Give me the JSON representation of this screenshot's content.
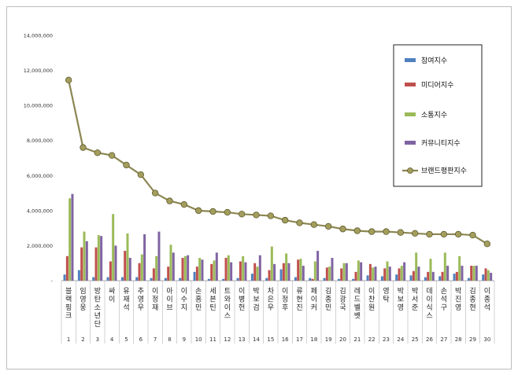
{
  "chart_data": {
    "type": "bar",
    "title": "",
    "xlabel": "",
    "ylabel": "",
    "ylim": [
      0,
      14000000
    ],
    "yticks": [
      "-",
      "2,000,000",
      "4,000,000",
      "6,000,000",
      "8,000,000",
      "10,000,000",
      "12,000,000",
      "14,000,000"
    ],
    "grid": false,
    "legend_position": "top-right",
    "categories": [
      "블랙핑크",
      "임영웅",
      "방탄소년단",
      "싸이",
      "유재석",
      "추영우",
      "이정재",
      "아이브",
      "이수지",
      "손흥민",
      "세븐틴",
      "트와이스",
      "이병헌",
      "박보검",
      "차은우",
      "이정후",
      "류현진",
      "페이커",
      "김종민",
      "김광국",
      "레드벨벳",
      "이찬원",
      "영탁",
      "박보영",
      "박서준",
      "데이식스",
      "손석구",
      "박진영",
      "김종현",
      "이종석"
    ],
    "category_numbers": [
      "1",
      "2",
      "3",
      "4",
      "5",
      "6",
      "7",
      "8",
      "9",
      "10",
      "11",
      "12",
      "13",
      "14",
      "15",
      "16",
      "17",
      "18",
      "19",
      "20",
      "21",
      "22",
      "23",
      "24",
      "25",
      "26",
      "27",
      "28",
      "29",
      "30"
    ],
    "series": [
      {
        "name": "참여지수",
        "type": "bar",
        "color": "#4f81bd",
        "values": [
          350000,
          600000,
          200000,
          200000,
          200000,
          200000,
          150000,
          150000,
          150000,
          500000,
          100000,
          100000,
          150000,
          400000,
          150000,
          650000,
          200000,
          150000,
          150000,
          100000,
          100000,
          300000,
          250000,
          350000,
          300000,
          200000,
          250000,
          400000,
          150000,
          350000
        ]
      },
      {
        "name": "미디어지수",
        "type": "bar",
        "color": "#c0504d",
        "values": [
          1400000,
          1900000,
          1900000,
          1100000,
          1700000,
          1000000,
          700000,
          800000,
          1300000,
          800000,
          950000,
          1300000,
          1100000,
          1000000,
          600000,
          1000000,
          1200000,
          100000,
          750000,
          700000,
          500000,
          950000,
          700000,
          700000,
          550000,
          500000,
          500000,
          500000,
          850000,
          700000
        ]
      },
      {
        "name": "소통지수",
        "type": "bar",
        "color": "#9bbb59",
        "values": [
          4700000,
          2800000,
          2600000,
          3800000,
          2700000,
          1500000,
          1400000,
          2050000,
          1400000,
          1300000,
          1150000,
          1450000,
          1400000,
          800000,
          1950000,
          1550000,
          1250000,
          1100000,
          800000,
          1000000,
          1150000,
          750000,
          1100000,
          850000,
          1600000,
          1250000,
          1600000,
          1400000,
          850000,
          600000
        ]
      },
      {
        "name": "커뮤니티지수",
        "type": "bar",
        "color": "#8064a2",
        "values": [
          4950000,
          2250000,
          2550000,
          2000000,
          1300000,
          2650000,
          2800000,
          1600000,
          1450000,
          1200000,
          1600000,
          1050000,
          1050000,
          1450000,
          950000,
          1000000,
          850000,
          1700000,
          1300000,
          1000000,
          1050000,
          800000,
          800000,
          1050000,
          800000,
          500000,
          850000,
          850000,
          850000,
          450000
        ]
      },
      {
        "name": "브랜드평판지수",
        "type": "line",
        "color": "#8c8652",
        "values": [
          11450000,
          7600000,
          7300000,
          7150000,
          6600000,
          6050000,
          5000000,
          4550000,
          4350000,
          4000000,
          3950000,
          3900000,
          3800000,
          3750000,
          3700000,
          3450000,
          3300000,
          3200000,
          3100000,
          2950000,
          2850000,
          2800000,
          2800000,
          2750000,
          2700000,
          2650000,
          2650000,
          2650000,
          2600000,
          2100000
        ]
      }
    ]
  }
}
